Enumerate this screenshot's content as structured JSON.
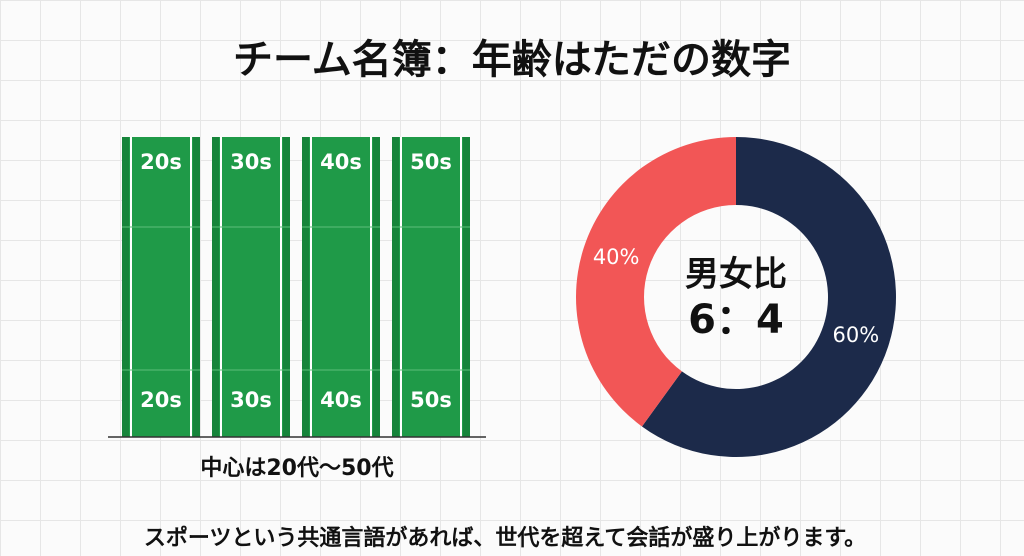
{
  "title": "チーム名簿：年齢はただの数字",
  "lanes": {
    "labels": [
      "20s",
      "30s",
      "40s",
      "50s"
    ],
    "caption": "中心は20代〜50代"
  },
  "chart_data": {
    "type": "pie",
    "donut": true,
    "values": [
      60,
      40
    ],
    "value_labels": [
      "60%",
      "40%"
    ],
    "colors": [
      "#1c2a4a",
      "#f25656"
    ],
    "center_label": [
      "男女比",
      "6：4"
    ]
  },
  "footer": "スポーツという共通言語があれば、世代を超えて会話が盛り上がります。"
}
